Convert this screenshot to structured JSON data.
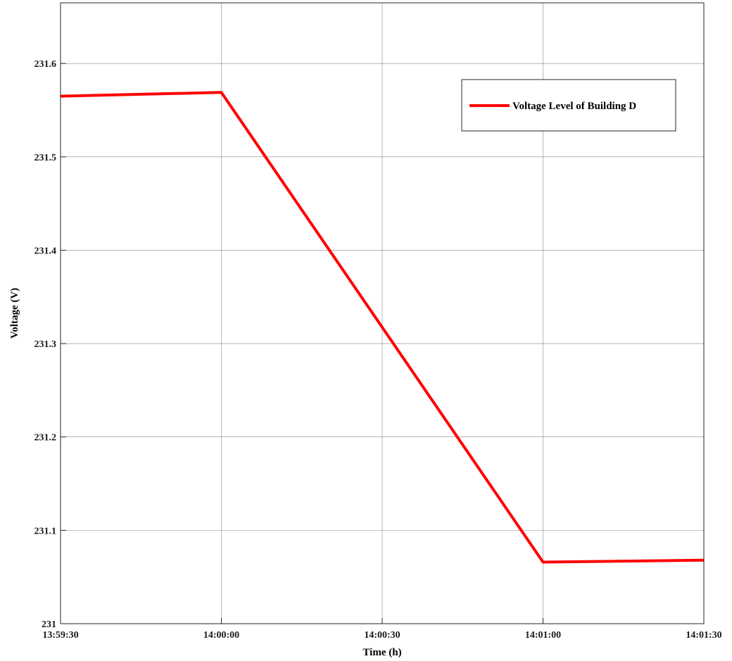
{
  "chart_data": {
    "type": "line",
    "xlabel": "Time (h)",
    "ylabel": "Voltage (V)",
    "x_ticks": [
      "13:59:30",
      "14:00:00",
      "14:00:30",
      "14:01:00",
      "14:01:30"
    ],
    "x_tick_values": [
      0,
      30,
      60,
      90,
      120
    ],
    "xlim": [
      "13:59:30",
      "14:01:30"
    ],
    "y_ticks": [
      "231",
      "231.1",
      "231.2",
      "231.3",
      "231.4",
      "231.5",
      "231.6"
    ],
    "y_tick_values": [
      231.0,
      231.1,
      231.2,
      231.3,
      231.4,
      231.5,
      231.6
    ],
    "ylim": [
      231.0,
      231.665
    ],
    "grid": true,
    "legend_position": "top-right",
    "series": [
      {
        "name": "Voltage Level of Building D",
        "color": "#ff0000",
        "x": [
          "13:59:30",
          "14:00:00",
          "14:01:00",
          "14:01:30"
        ],
        "values": [
          231.565,
          231.569,
          231.066,
          231.068
        ]
      }
    ]
  }
}
